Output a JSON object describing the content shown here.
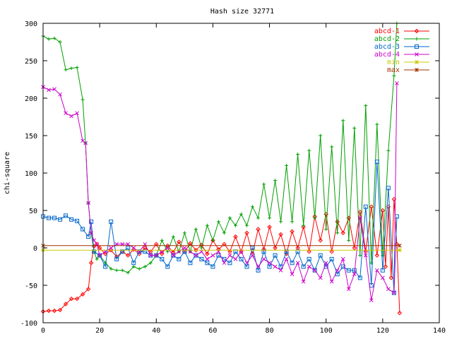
{
  "chart_data": {
    "type": "line",
    "title": "Hash size 32771",
    "xlabel": "",
    "ylabel": "chi-square",
    "xlim": [
      0,
      140
    ],
    "ylim": [
      -100,
      300
    ],
    "xticks": [
      0,
      20,
      40,
      60,
      80,
      100,
      120,
      140
    ],
    "yticks": [
      -100,
      -50,
      0,
      50,
      100,
      150,
      200,
      250,
      300
    ],
    "grid": false,
    "legend_position": "top-right",
    "series": [
      {
        "name": "abcd-1",
        "color": "#ff0000",
        "marker": "diamond",
        "x": [
          0,
          2,
          4,
          6,
          8,
          10,
          12,
          14,
          16,
          17,
          18,
          19,
          20,
          22,
          24,
          26,
          28,
          30,
          32,
          34,
          36,
          38,
          40,
          42,
          44,
          46,
          48,
          50,
          52,
          54,
          56,
          58,
          60,
          62,
          64,
          66,
          68,
          70,
          72,
          74,
          76,
          78,
          80,
          82,
          84,
          86,
          88,
          90,
          92,
          94,
          96,
          98,
          100,
          102,
          104,
          106,
          108,
          110,
          112,
          114,
          116,
          118,
          120,
          121,
          122,
          123,
          124,
          125,
          126
        ],
        "values": [
          -85,
          -84,
          -84,
          -83,
          -75,
          -68,
          -68,
          -62,
          -55,
          -20,
          2,
          5,
          0,
          -8,
          -3,
          -12,
          -5,
          -10,
          -2,
          -8,
          0,
          -5,
          5,
          -8,
          3,
          -6,
          8,
          -5,
          6,
          -3,
          4,
          -8,
          10,
          -2,
          5,
          -5,
          15,
          -5,
          20,
          -8,
          25,
          -2,
          28,
          0,
          18,
          -8,
          22,
          0,
          28,
          -5,
          42,
          10,
          45,
          -5,
          35,
          20,
          40,
          0,
          48,
          -5,
          55,
          -10,
          50,
          -25,
          55,
          -40,
          65,
          5,
          -87
        ]
      },
      {
        "name": "abcd-2",
        "color": "#00a000",
        "marker": "plus",
        "x": [
          0,
          2,
          4,
          6,
          8,
          10,
          12,
          14,
          15,
          16,
          17,
          18,
          19,
          20,
          22,
          24,
          26,
          28,
          30,
          32,
          34,
          36,
          38,
          40,
          42,
          44,
          46,
          48,
          50,
          52,
          54,
          56,
          58,
          60,
          62,
          64,
          66,
          68,
          70,
          72,
          74,
          76,
          78,
          80,
          82,
          84,
          86,
          88,
          90,
          92,
          94,
          96,
          98,
          100,
          102,
          104,
          106,
          108,
          110,
          112,
          114,
          116,
          118,
          120,
          122,
          124,
          125
        ],
        "values": [
          283,
          279,
          280,
          275,
          238,
          240,
          241,
          198,
          140,
          60,
          20,
          -5,
          -15,
          -10,
          -20,
          -28,
          -30,
          -30,
          -33,
          -25,
          -28,
          -25,
          -20,
          -10,
          10,
          -5,
          15,
          -5,
          20,
          -5,
          25,
          0,
          30,
          10,
          35,
          20,
          40,
          30,
          45,
          30,
          55,
          40,
          85,
          40,
          90,
          35,
          110,
          35,
          125,
          30,
          130,
          40,
          150,
          25,
          135,
          20,
          170,
          10,
          160,
          -10,
          190,
          -20,
          165,
          -10,
          130,
          230,
          300
        ]
      },
      {
        "name": "abcd-3",
        "color": "#0066cc",
        "marker": "square",
        "x": [
          0,
          2,
          4,
          6,
          8,
          10,
          12,
          14,
          16,
          17,
          18,
          20,
          22,
          24,
          26,
          28,
          30,
          32,
          34,
          36,
          38,
          40,
          42,
          44,
          46,
          48,
          50,
          52,
          54,
          56,
          58,
          60,
          62,
          64,
          66,
          68,
          70,
          72,
          74,
          76,
          78,
          80,
          82,
          84,
          86,
          88,
          90,
          92,
          94,
          96,
          98,
          100,
          102,
          104,
          106,
          108,
          110,
          112,
          114,
          116,
          118,
          120,
          122,
          124,
          125
        ],
        "values": [
          42,
          40,
          40,
          38,
          43,
          38,
          36,
          25,
          15,
          35,
          -5,
          -10,
          -25,
          35,
          -15,
          -5,
          0,
          -20,
          -5,
          -5,
          -10,
          -10,
          -15,
          -25,
          -10,
          -15,
          -5,
          -20,
          -10,
          -15,
          -20,
          -25,
          -10,
          -15,
          -20,
          -5,
          -15,
          -25,
          0,
          -30,
          -5,
          -25,
          -10,
          -25,
          -5,
          -20,
          -5,
          -25,
          -15,
          -30,
          -10,
          -25,
          -15,
          -35,
          -25,
          -30,
          -30,
          -40,
          55,
          -50,
          115,
          -30,
          80,
          -60,
          42
        ]
      },
      {
        "name": "abcd-4",
        "color": "#cc00cc",
        "marker": "cross",
        "x": [
          0,
          2,
          4,
          6,
          8,
          10,
          12,
          14,
          15,
          16,
          17,
          18,
          19,
          20,
          22,
          24,
          26,
          28,
          30,
          32,
          34,
          36,
          38,
          40,
          42,
          44,
          46,
          48,
          50,
          52,
          54,
          56,
          58,
          60,
          62,
          64,
          66,
          68,
          70,
          72,
          74,
          76,
          78,
          80,
          82,
          84,
          86,
          88,
          90,
          92,
          94,
          96,
          98,
          100,
          102,
          104,
          106,
          108,
          110,
          112,
          114,
          116,
          118,
          120,
          122,
          124,
          125
        ],
        "values": [
          215,
          211,
          212,
          205,
          180,
          176,
          180,
          143,
          140,
          60,
          20,
          10,
          5,
          -10,
          -5,
          0,
          5,
          5,
          5,
          0,
          -5,
          5,
          -10,
          -10,
          -5,
          0,
          -10,
          -5,
          0,
          -5,
          -10,
          -5,
          -15,
          -10,
          -5,
          -20,
          -10,
          -15,
          -5,
          -20,
          -10,
          -25,
          -15,
          -20,
          -25,
          -30,
          -15,
          -35,
          -20,
          -45,
          -25,
          -30,
          -40,
          -20,
          -45,
          -30,
          -15,
          -55,
          -35,
          40,
          -10,
          -70,
          -30,
          -40,
          -55,
          -60,
          220
        ]
      },
      {
        "name": "min",
        "color": "#c8c800",
        "marker": "star",
        "x": [
          0,
          126
        ],
        "values": [
          -3,
          -3
        ]
      },
      {
        "name": "max",
        "color": "#a03000",
        "marker": "asterisk",
        "x": [
          0,
          126
        ],
        "values": [
          3,
          3
        ]
      }
    ]
  }
}
